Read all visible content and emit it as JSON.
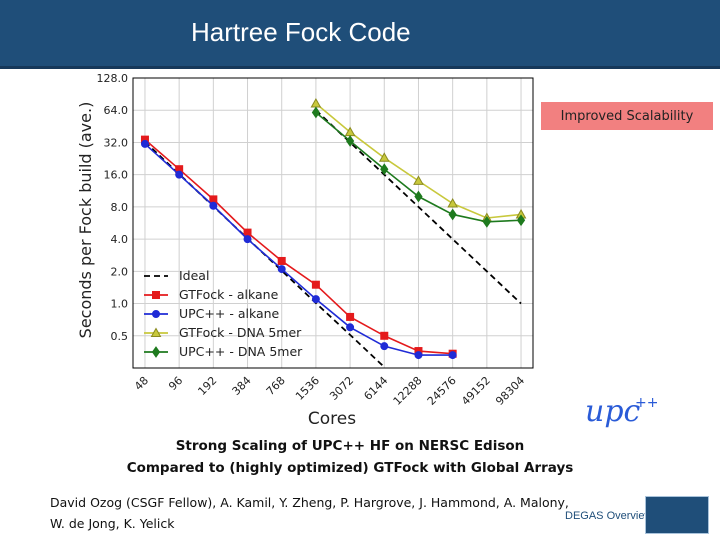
{
  "slide": {
    "title": "Hartree Fock Code",
    "callout": "Improved Scalability",
    "caption_line1": "Strong Scaling of UPC++ HF on NERSC Edison",
    "caption_line2": "Compared to (highly optimized) GTFock with Global Arrays",
    "authors_line1": "David Ozog (CSGF Fellow), A. Kamil, Y. Zheng, P. Hargrove, J. Hammond, A. Malony,",
    "authors_line2": "W. de Jong, K. Yelick",
    "footer": "DEGAS Overview",
    "upc_logo_text": "upc",
    "upc_logo_plus": "++"
  },
  "colors": {
    "header_bg": "#1f4e79",
    "ideal": "#000000",
    "gtfock_alkane": "#e41a1c",
    "upc_alkane": "#1f2bd6",
    "gtfock_dna": "#c8c83c",
    "upc_dna": "#1e7a1e",
    "callout_bg": "#f28080"
  },
  "chart_data": {
    "type": "line",
    "title": "",
    "xlabel": "Cores",
    "ylabel": "Seconds per Fock build (ave.)",
    "x_scale": "log2",
    "y_scale": "log2",
    "grid": true,
    "legend_position": "lower-left",
    "ylim": [
      0.25,
      128
    ],
    "x": [
      48,
      96,
      192,
      384,
      768,
      1536,
      3072,
      6144,
      12288,
      24576,
      49152,
      98304
    ],
    "x_tick_labels": [
      "48",
      "96",
      "192",
      "384",
      "768",
      "1536",
      "3072",
      "6144",
      "12288",
      "24576",
      "49152",
      "98304"
    ],
    "y_ticks": [
      0.5,
      1.0,
      2.0,
      4.0,
      8.0,
      16.0,
      32.0,
      64.0,
      128.0
    ],
    "y_tick_labels": [
      "0.5",
      "1.0",
      "2.0",
      "4.0",
      "8.0",
      "16.0",
      "32.0",
      "64.0",
      "128.0"
    ],
    "series": [
      {
        "name": "Ideal",
        "style": "dashed",
        "marker": "none",
        "color": "#000000",
        "points": [
          [
            48,
            32.5
          ],
          [
            96,
            16.2
          ],
          [
            192,
            8.1
          ],
          [
            384,
            4.05
          ],
          [
            768,
            2.03
          ],
          [
            1536,
            1.01
          ],
          [
            3072,
            0.51
          ],
          [
            6144,
            0.255
          ]
        ]
      },
      {
        "name": "Ideal",
        "style": "dashed",
        "marker": "none",
        "color": "#000000",
        "points": [
          [
            1536,
            64
          ],
          [
            3072,
            32
          ],
          [
            6144,
            16
          ],
          [
            12288,
            8
          ],
          [
            24576,
            4
          ],
          [
            49152,
            2
          ],
          [
            98304,
            1
          ]
        ]
      },
      {
        "name": "GTFock - alkane",
        "style": "solid",
        "marker": "square",
        "color": "#e41a1c",
        "points": [
          [
            48,
            34
          ],
          [
            96,
            18
          ],
          [
            192,
            9.4
          ],
          [
            384,
            4.6
          ],
          [
            768,
            2.5
          ],
          [
            1536,
            1.5
          ],
          [
            3072,
            0.75
          ],
          [
            6144,
            0.5
          ],
          [
            12288,
            0.36
          ],
          [
            24576,
            0.34
          ]
        ]
      },
      {
        "name": "UPC++ - alkane",
        "style": "solid",
        "marker": "circle",
        "color": "#1f2bd6",
        "points": [
          [
            48,
            31
          ],
          [
            96,
            16
          ],
          [
            192,
            8.2
          ],
          [
            384,
            4.0
          ],
          [
            768,
            2.1
          ],
          [
            1536,
            1.1
          ],
          [
            3072,
            0.6
          ],
          [
            6144,
            0.4
          ],
          [
            12288,
            0.33
          ],
          [
            24576,
            0.33
          ]
        ]
      },
      {
        "name": "GTFock - DNA 5mer",
        "style": "solid",
        "marker": "triangle",
        "color": "#c8c83c",
        "points": [
          [
            1536,
            74
          ],
          [
            3072,
            40
          ],
          [
            6144,
            23
          ],
          [
            12288,
            14
          ],
          [
            24576,
            8.6
          ],
          [
            49152,
            6.3
          ],
          [
            98304,
            6.8
          ]
        ]
      },
      {
        "name": "UPC++ - DNA 5mer",
        "style": "solid",
        "marker": "diamond",
        "color": "#1e7a1e",
        "points": [
          [
            1536,
            61
          ],
          [
            3072,
            33
          ],
          [
            6144,
            18
          ],
          [
            12288,
            10
          ],
          [
            24576,
            6.8
          ],
          [
            49152,
            5.8
          ],
          [
            98304,
            6.0
          ]
        ]
      }
    ]
  }
}
